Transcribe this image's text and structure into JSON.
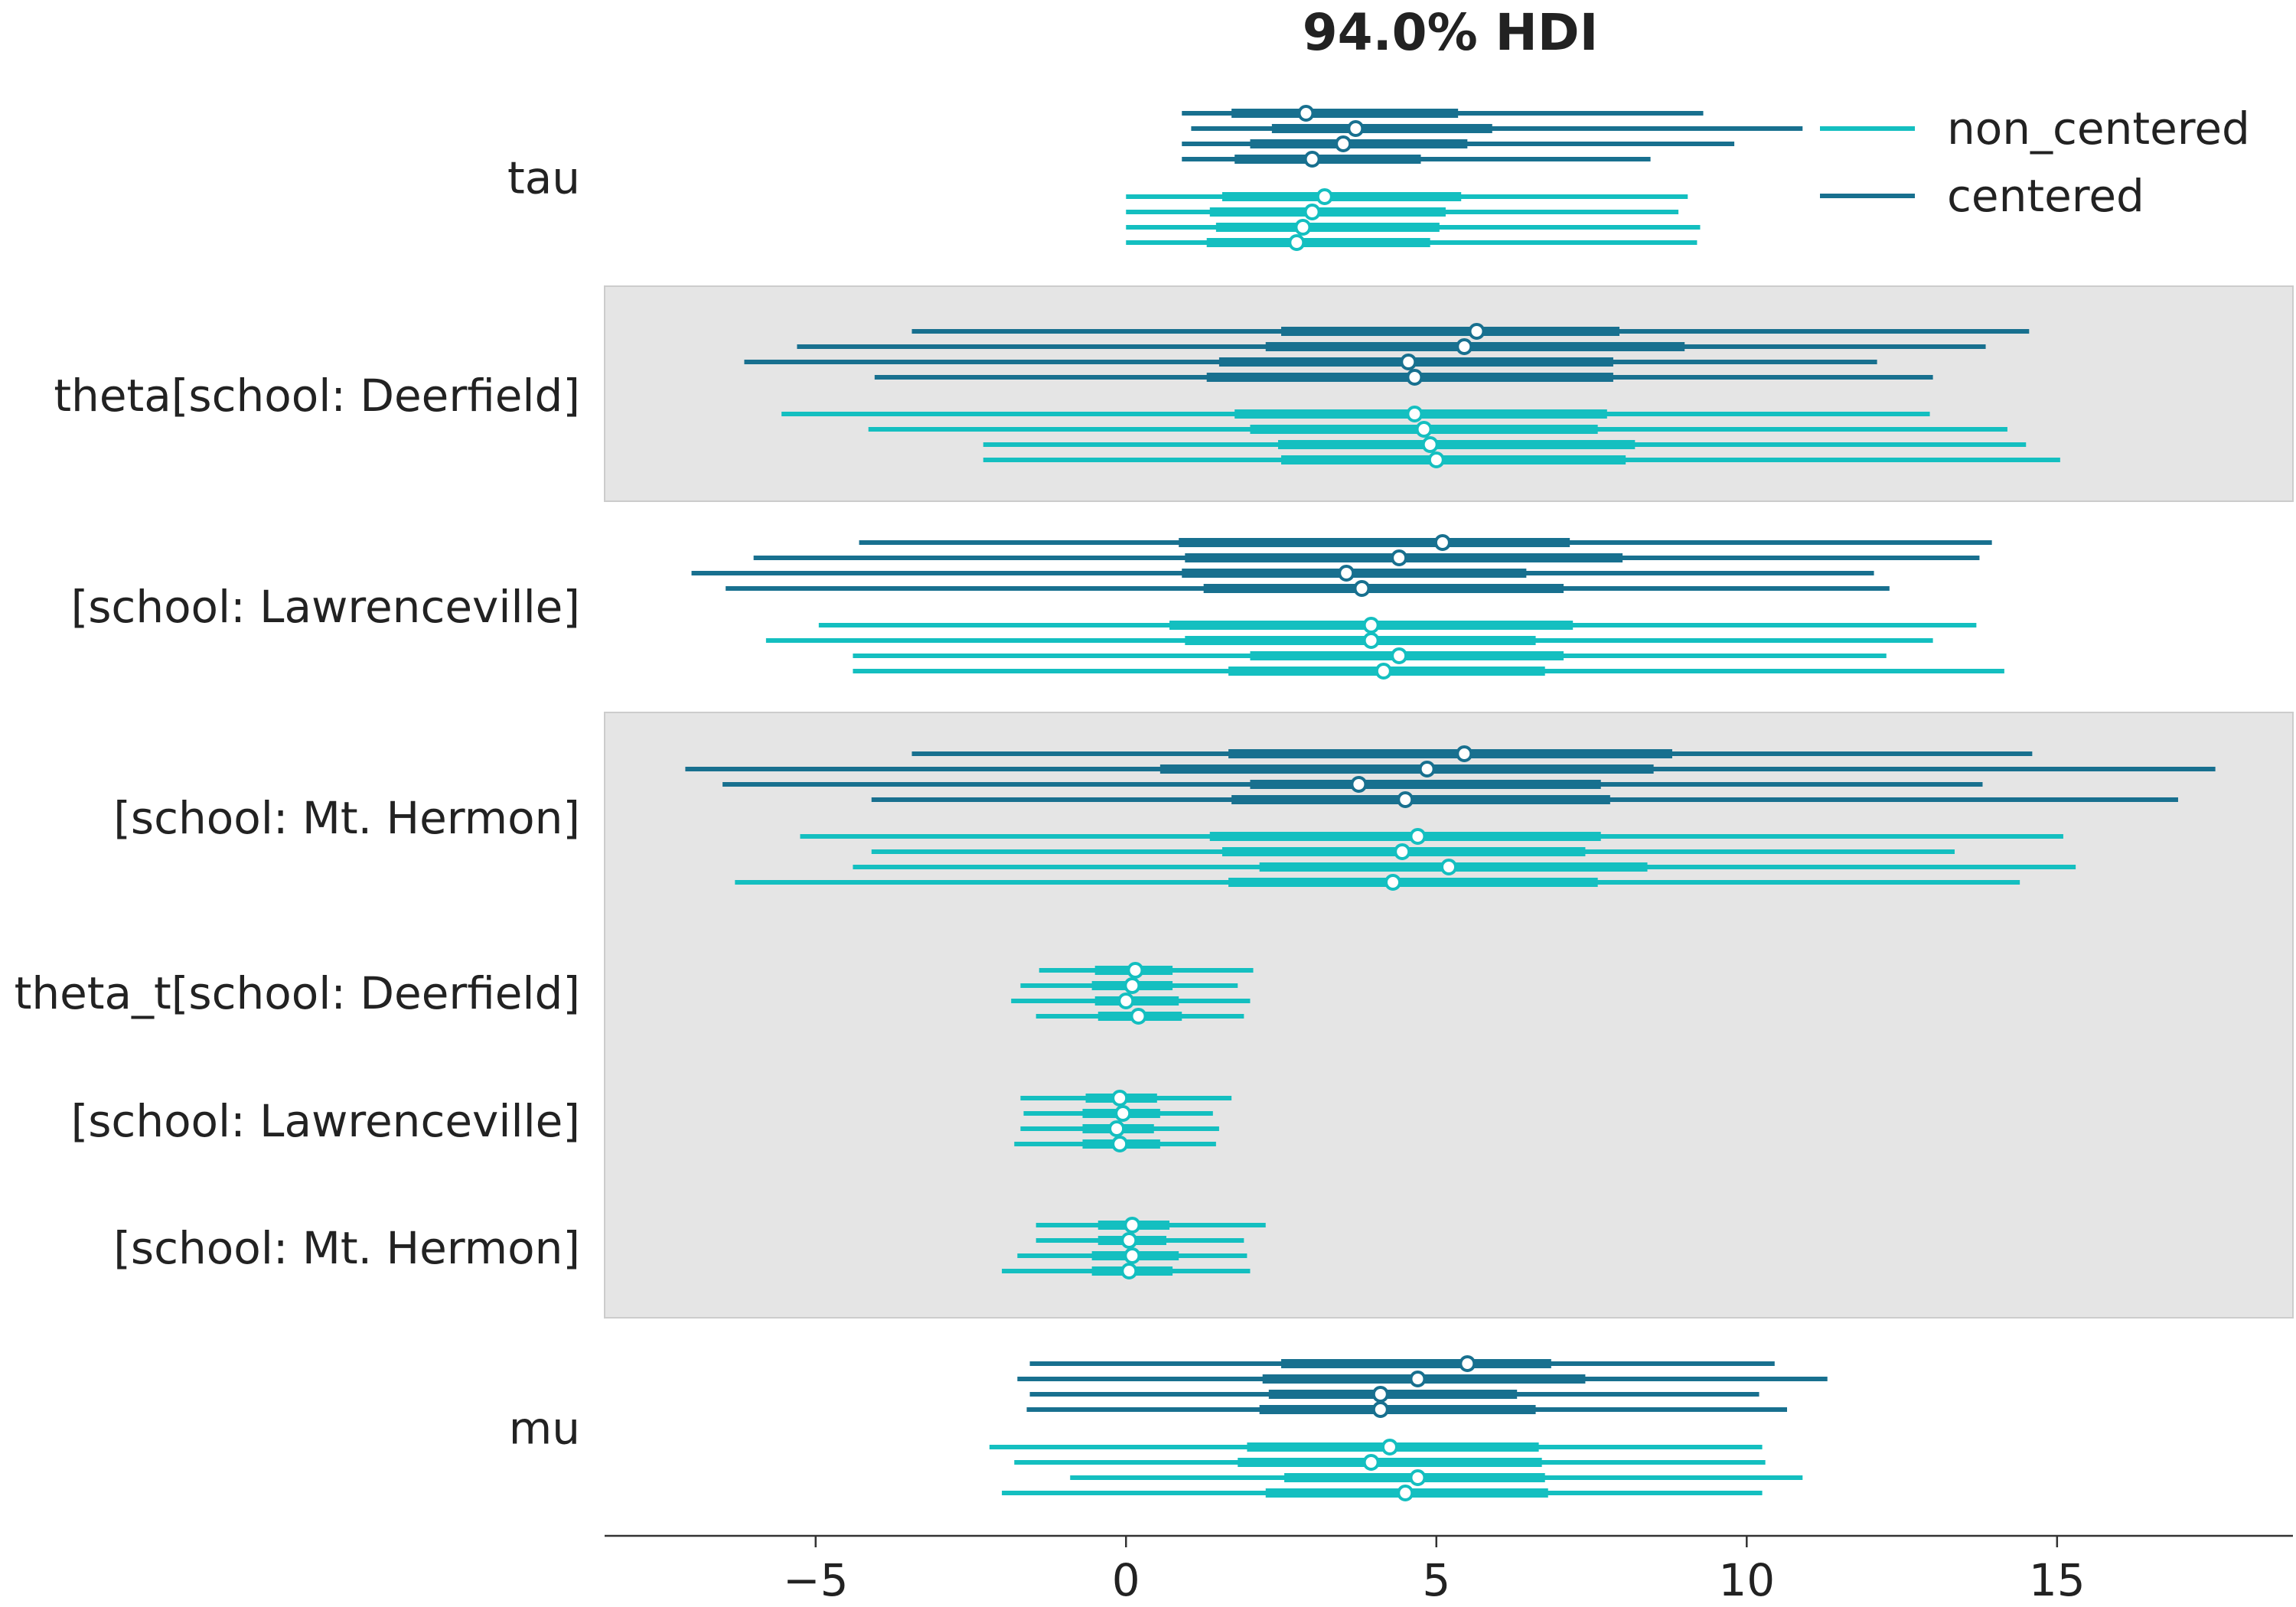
{
  "chart_data": {
    "type": "forest",
    "title": "94.0% HDI",
    "xlim": [
      -8.4,
      18.8
    ],
    "xticks": [
      -5,
      0,
      5,
      10,
      15
    ],
    "xtick_labels": [
      "−5",
      "0",
      "5",
      "10",
      "15"
    ],
    "colors": {
      "non_centered": "#14bfc0",
      "centered": "#18708f",
      "band": "#e5e5e5"
    },
    "legend": {
      "position": "top-right",
      "entries": [
        {
          "label": "non_centered",
          "color": "#14bfc0"
        },
        {
          "label": "centered",
          "color": "#18708f"
        }
      ]
    },
    "variables": [
      {
        "label": "tau",
        "band": false,
        "centered": [
          {
            "lo": 0.9,
            "q1": 1.7,
            "med": 2.9,
            "q3": 5.35,
            "hi": 9.3
          },
          {
            "lo": 1.05,
            "q1": 2.35,
            "med": 3.7,
            "q3": 5.9,
            "hi": 10.9
          },
          {
            "lo": 0.9,
            "q1": 2.0,
            "med": 3.5,
            "q3": 5.5,
            "hi": 9.8
          },
          {
            "lo": 0.9,
            "q1": 1.75,
            "med": 3.0,
            "q3": 4.75,
            "hi": 8.45
          }
        ],
        "non_centered": [
          {
            "lo": 0.0,
            "q1": 1.55,
            "med": 3.2,
            "q3": 5.4,
            "hi": 9.05
          },
          {
            "lo": 0.0,
            "q1": 1.35,
            "med": 3.0,
            "q3": 5.15,
            "hi": 8.9
          },
          {
            "lo": 0.0,
            "q1": 1.45,
            "med": 2.85,
            "q3": 5.05,
            "hi": 9.25
          },
          {
            "lo": 0.0,
            "q1": 1.3,
            "med": 2.75,
            "q3": 4.9,
            "hi": 9.2
          }
        ]
      },
      {
        "label": "theta[school: Deerfield]",
        "band": true,
        "centered": [
          {
            "lo": -3.45,
            "q1": 2.5,
            "med": 5.65,
            "q3": 7.95,
            "hi": 14.55
          },
          {
            "lo": -5.3,
            "q1": 2.25,
            "med": 5.45,
            "q3": 9.0,
            "hi": 13.85
          },
          {
            "lo": -6.15,
            "q1": 1.5,
            "med": 4.55,
            "q3": 7.85,
            "hi": 12.1
          },
          {
            "lo": -4.05,
            "q1": 1.3,
            "med": 4.65,
            "q3": 7.85,
            "hi": 13.0
          }
        ],
        "non_centered": [
          {
            "lo": -5.55,
            "q1": 1.75,
            "med": 4.65,
            "q3": 7.75,
            "hi": 12.95
          },
          {
            "lo": -4.15,
            "q1": 2.0,
            "med": 4.8,
            "q3": 7.6,
            "hi": 14.2
          },
          {
            "lo": -2.3,
            "q1": 2.45,
            "med": 4.9,
            "q3": 8.2,
            "hi": 14.5
          },
          {
            "lo": -2.3,
            "q1": 2.5,
            "med": 5.0,
            "q3": 8.05,
            "hi": 15.05
          }
        ]
      },
      {
        "label": "[school: Lawrenceville]",
        "band": false,
        "centered": [
          {
            "lo": -4.3,
            "q1": 0.85,
            "med": 5.1,
            "q3": 7.15,
            "hi": 13.95
          },
          {
            "lo": -6.0,
            "q1": 0.95,
            "med": 4.4,
            "q3": 8.0,
            "hi": 13.75
          },
          {
            "lo": -7.0,
            "q1": 0.9,
            "med": 3.55,
            "q3": 6.45,
            "hi": 12.05
          },
          {
            "lo": -6.45,
            "q1": 1.25,
            "med": 3.8,
            "q3": 7.05,
            "hi": 12.3
          }
        ],
        "non_centered": [
          {
            "lo": -4.95,
            "q1": 0.7,
            "med": 3.95,
            "q3": 7.2,
            "hi": 13.7
          },
          {
            "lo": -5.8,
            "q1": 0.95,
            "med": 3.95,
            "q3": 6.6,
            "hi": 13.0
          },
          {
            "lo": -4.4,
            "q1": 2.0,
            "med": 4.4,
            "q3": 7.05,
            "hi": 12.25
          },
          {
            "lo": -4.4,
            "q1": 1.65,
            "med": 4.15,
            "q3": 6.75,
            "hi": 14.15
          }
        ]
      },
      {
        "label": "[school: Mt. Hermon]",
        "band": true,
        "centered": [
          {
            "lo": -3.45,
            "q1": 1.65,
            "med": 5.45,
            "q3": 8.8,
            "hi": 14.6
          },
          {
            "lo": -7.1,
            "q1": 0.55,
            "med": 4.85,
            "q3": 8.5,
            "hi": 17.55
          },
          {
            "lo": -6.5,
            "q1": 2.0,
            "med": 3.75,
            "q3": 7.65,
            "hi": 13.8
          },
          {
            "lo": -4.1,
            "q1": 1.7,
            "med": 4.5,
            "q3": 7.8,
            "hi": 16.95
          }
        ],
        "non_centered": [
          {
            "lo": -5.25,
            "q1": 1.35,
            "med": 4.7,
            "q3": 7.65,
            "hi": 15.1
          },
          {
            "lo": -4.1,
            "q1": 1.55,
            "med": 4.45,
            "q3": 7.4,
            "hi": 13.35
          },
          {
            "lo": -4.4,
            "q1": 2.15,
            "med": 5.2,
            "q3": 8.4,
            "hi": 15.3
          },
          {
            "lo": -6.3,
            "q1": 1.65,
            "med": 4.3,
            "q3": 7.6,
            "hi": 14.4
          }
        ]
      },
      {
        "label": "theta_t[school: Deerfield]",
        "band": true,
        "centered": [],
        "non_centered": [
          {
            "lo": -1.4,
            "q1": -0.5,
            "med": 0.15,
            "q3": 0.75,
            "hi": 2.05
          },
          {
            "lo": -1.7,
            "q1": -0.55,
            "med": 0.1,
            "q3": 0.75,
            "hi": 1.8
          },
          {
            "lo": -1.85,
            "q1": -0.5,
            "med": 0.0,
            "q3": 0.85,
            "hi": 2.0
          },
          {
            "lo": -1.45,
            "q1": -0.45,
            "med": 0.2,
            "q3": 0.9,
            "hi": 1.9
          }
        ]
      },
      {
        "label": "[school: Lawrenceville]",
        "band": true,
        "centered": [],
        "non_centered": [
          {
            "lo": -1.7,
            "q1": -0.65,
            "med": -0.1,
            "q3": 0.5,
            "hi": 1.7
          },
          {
            "lo": -1.65,
            "q1": -0.7,
            "med": -0.05,
            "q3": 0.55,
            "hi": 1.4
          },
          {
            "lo": -1.7,
            "q1": -0.7,
            "med": -0.15,
            "q3": 0.45,
            "hi": 1.5
          },
          {
            "lo": -1.8,
            "q1": -0.7,
            "med": -0.1,
            "q3": 0.55,
            "hi": 1.45
          }
        ]
      },
      {
        "label": "[school: Mt. Hermon]",
        "band": true,
        "centered": [],
        "non_centered": [
          {
            "lo": -1.45,
            "q1": -0.45,
            "med": 0.1,
            "q3": 0.7,
            "hi": 2.25
          },
          {
            "lo": -1.45,
            "q1": -0.45,
            "med": 0.05,
            "q3": 0.65,
            "hi": 1.9
          },
          {
            "lo": -1.75,
            "q1": -0.55,
            "med": 0.1,
            "q3": 0.85,
            "hi": 1.95
          },
          {
            "lo": -2.0,
            "q1": -0.55,
            "med": 0.05,
            "q3": 0.75,
            "hi": 2.0
          }
        ]
      },
      {
        "label": "mu",
        "band": false,
        "centered": [
          {
            "lo": -1.55,
            "q1": 2.5,
            "med": 5.5,
            "q3": 6.85,
            "hi": 10.45
          },
          {
            "lo": -1.75,
            "q1": 2.2,
            "med": 4.7,
            "q3": 7.4,
            "hi": 11.3
          },
          {
            "lo": -1.55,
            "q1": 2.3,
            "med": 4.1,
            "q3": 6.3,
            "hi": 10.2
          },
          {
            "lo": -1.6,
            "q1": 2.15,
            "med": 4.1,
            "q3": 6.6,
            "hi": 10.65
          }
        ],
        "non_centered": [
          {
            "lo": -2.2,
            "q1": 1.95,
            "med": 4.25,
            "q3": 6.65,
            "hi": 10.25
          },
          {
            "lo": -1.8,
            "q1": 1.8,
            "med": 3.95,
            "q3": 6.7,
            "hi": 10.3
          },
          {
            "lo": -0.9,
            "q1": 2.55,
            "med": 4.7,
            "q3": 6.75,
            "hi": 10.9
          },
          {
            "lo": -2.0,
            "q1": 2.25,
            "med": 4.5,
            "q3": 6.8,
            "hi": 10.25
          }
        ]
      }
    ]
  }
}
